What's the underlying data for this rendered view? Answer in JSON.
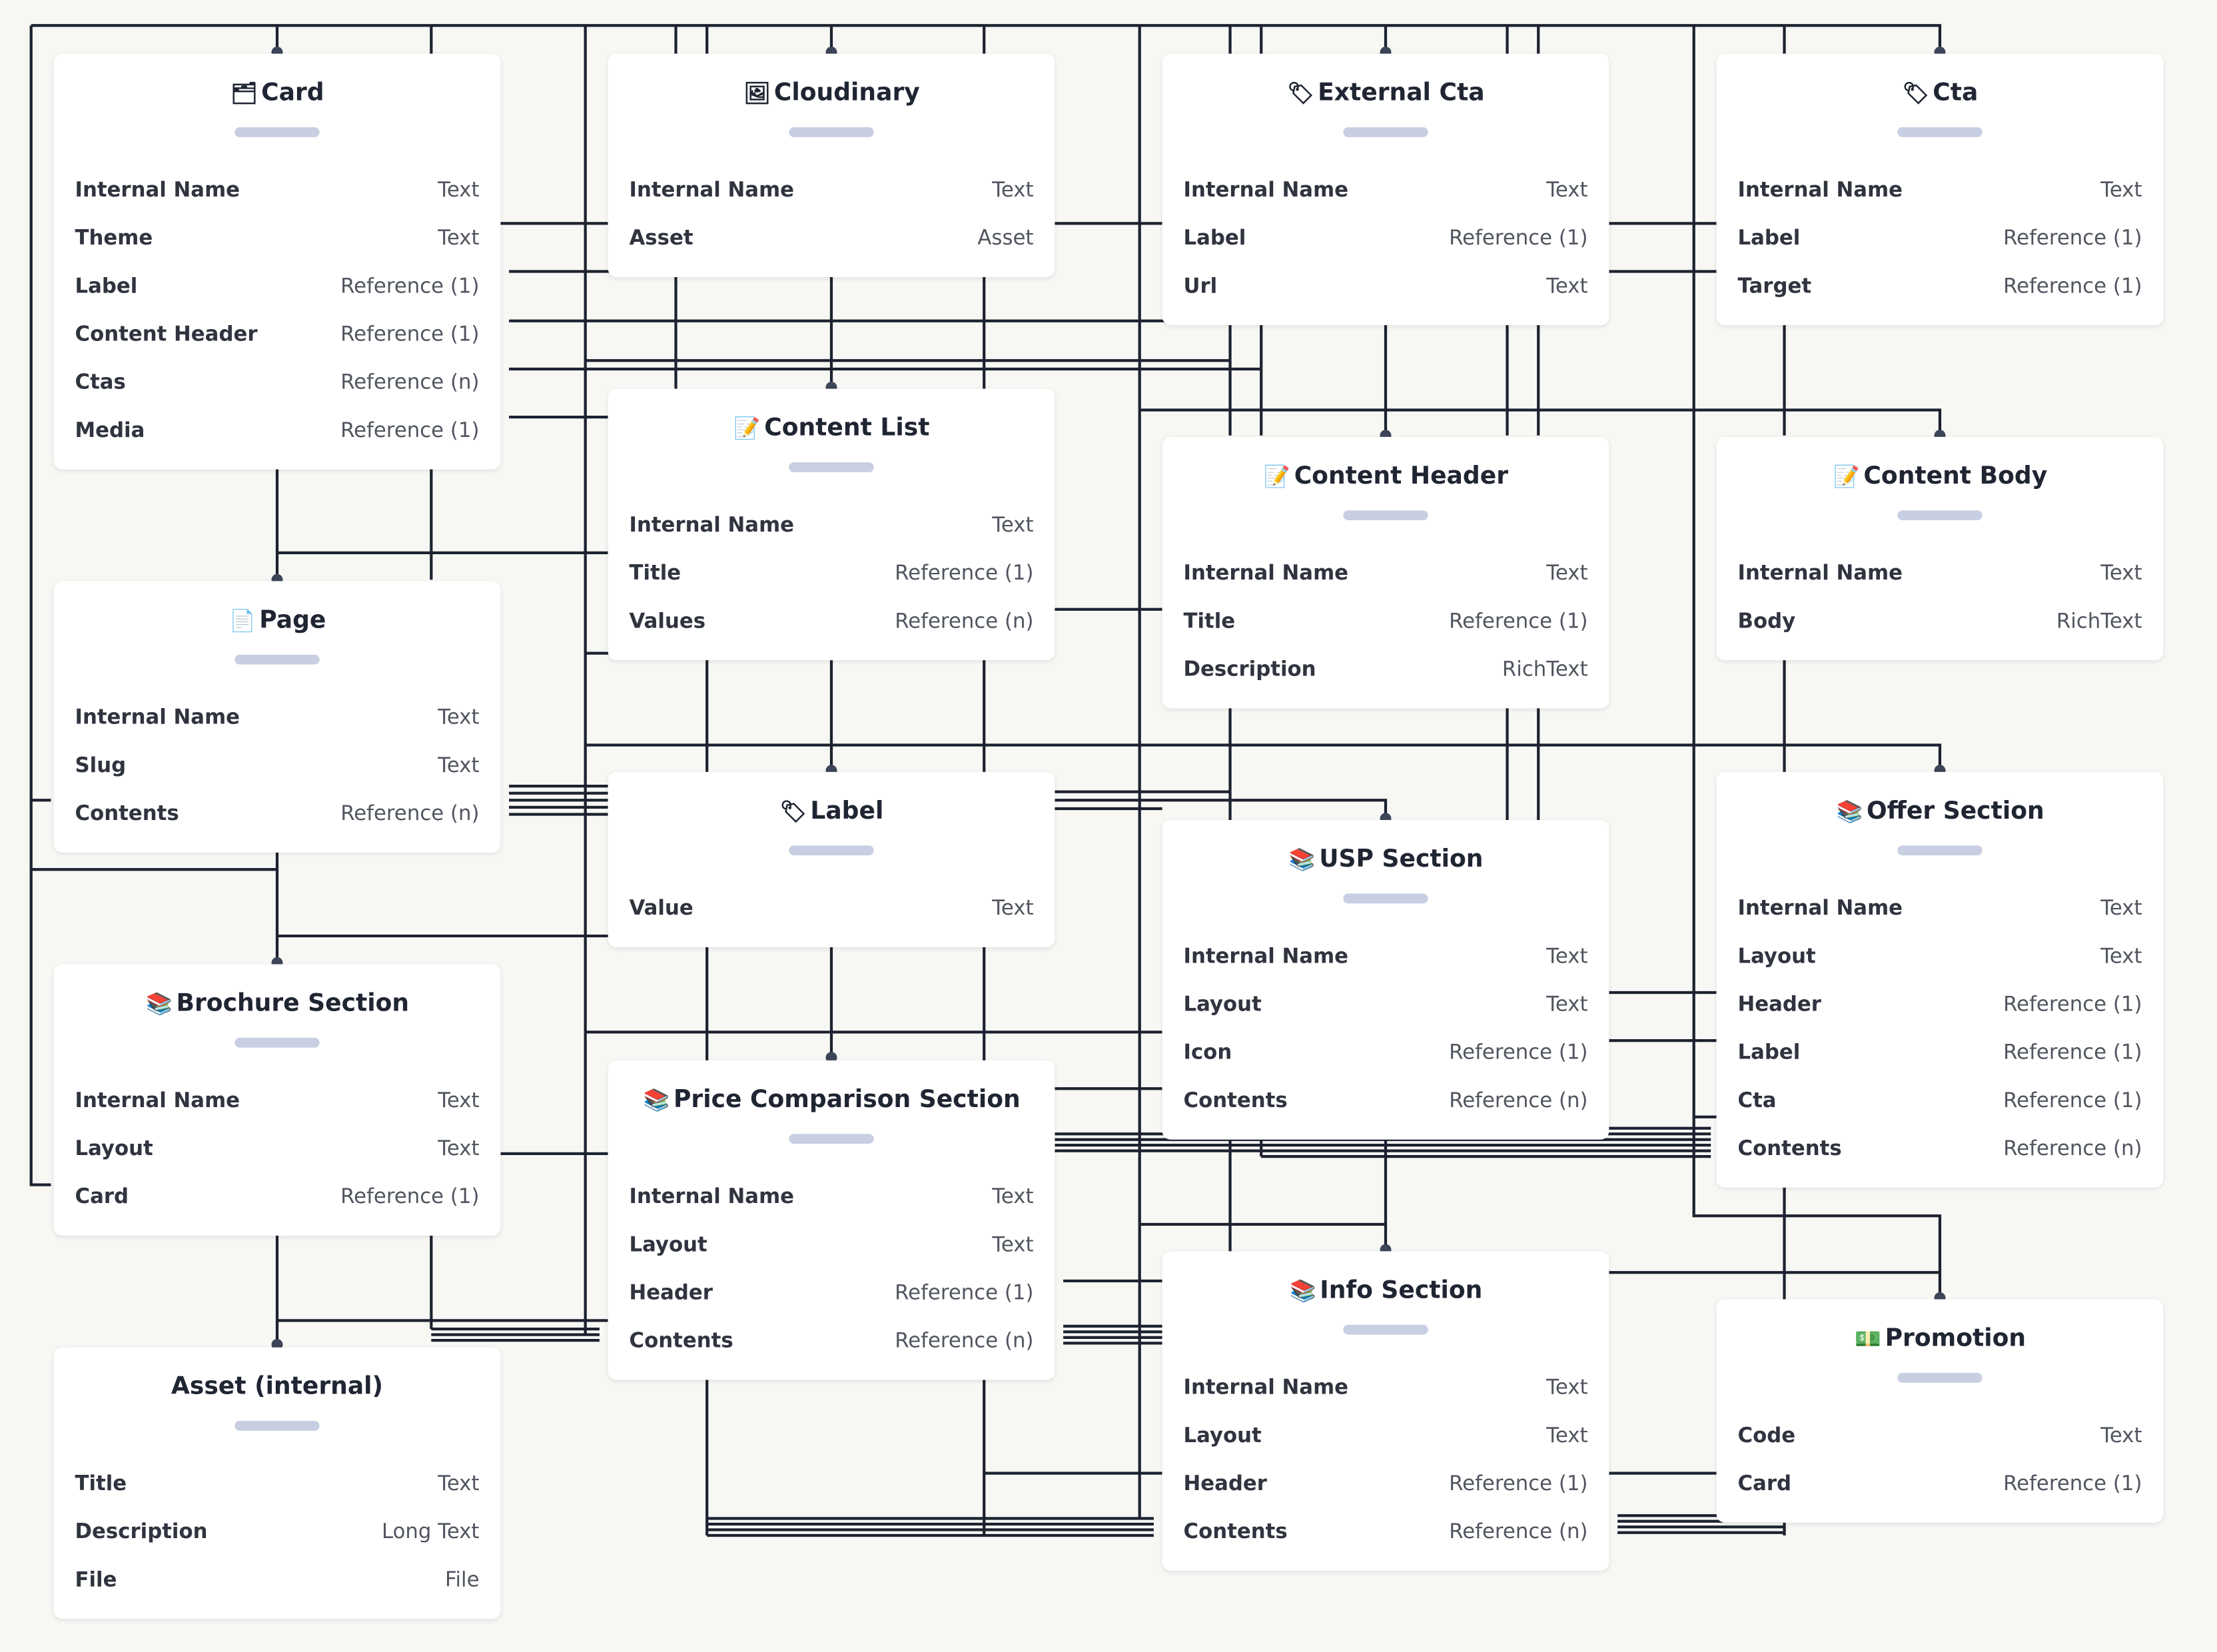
{
  "nodes": [
    {
      "id": "card",
      "title": "Card",
      "icon": "card-index-icon",
      "emoji": "🗂",
      "fields": [
        {
          "name": "Internal Name",
          "type": "Text"
        },
        {
          "name": "Theme",
          "type": "Text"
        },
        {
          "name": "Label",
          "type": "Reference (1)"
        },
        {
          "name": "Content Header",
          "type": "Reference (1)"
        },
        {
          "name": "Ctas",
          "type": "Reference (n)"
        },
        {
          "name": "Media",
          "type": "Reference (1)"
        }
      ]
    },
    {
      "id": "cloudinary",
      "title": "Cloudinary",
      "icon": "framed-picture-icon",
      "emoji": "🖼",
      "fields": [
        {
          "name": "Internal Name",
          "type": "Text"
        },
        {
          "name": "Asset",
          "type": "Asset"
        }
      ]
    },
    {
      "id": "external-cta",
      "title": "External Cta",
      "icon": "tag-icon",
      "emoji": "🏷",
      "fields": [
        {
          "name": "Internal Name",
          "type": "Text"
        },
        {
          "name": "Label",
          "type": "Reference (1)"
        },
        {
          "name": "Url",
          "type": "Text"
        }
      ]
    },
    {
      "id": "cta",
      "title": "Cta",
      "icon": "tag-icon",
      "emoji": "🏷",
      "fields": [
        {
          "name": "Internal Name",
          "type": "Text"
        },
        {
          "name": "Label",
          "type": "Reference (1)"
        },
        {
          "name": "Target",
          "type": "Reference (1)"
        }
      ]
    },
    {
      "id": "content-list",
      "title": "Content List",
      "icon": "memo-icon",
      "emoji": "📝",
      "fields": [
        {
          "name": "Internal Name",
          "type": "Text"
        },
        {
          "name": "Title",
          "type": "Reference (1)"
        },
        {
          "name": "Values",
          "type": "Reference (n)"
        }
      ]
    },
    {
      "id": "content-header",
      "title": "Content Header",
      "icon": "memo-icon",
      "emoji": "📝",
      "fields": [
        {
          "name": "Internal Name",
          "type": "Text"
        },
        {
          "name": "Title",
          "type": "Reference (1)"
        },
        {
          "name": "Description",
          "type": "RichText"
        }
      ]
    },
    {
      "id": "content-body",
      "title": "Content Body",
      "icon": "memo-icon",
      "emoji": "📝",
      "fields": [
        {
          "name": "Internal Name",
          "type": "Text"
        },
        {
          "name": "Body",
          "type": "RichText"
        }
      ]
    },
    {
      "id": "page",
      "title": "Page",
      "icon": "page-icon",
      "emoji": "📄",
      "fields": [
        {
          "name": "Internal Name",
          "type": "Text"
        },
        {
          "name": "Slug",
          "type": "Text"
        },
        {
          "name": "Contents",
          "type": "Reference (n)"
        }
      ]
    },
    {
      "id": "label",
      "title": "Label",
      "icon": "label-tag-icon",
      "emoji": "🏷",
      "fields": [
        {
          "name": "Value",
          "type": "Text"
        }
      ]
    },
    {
      "id": "offer-section",
      "title": "Offer Section",
      "icon": "books-icon",
      "emoji": "📚",
      "fields": [
        {
          "name": "Internal Name",
          "type": "Text"
        },
        {
          "name": "Layout",
          "type": "Text"
        },
        {
          "name": "Header",
          "type": "Reference (1)"
        },
        {
          "name": "Label",
          "type": "Reference (1)"
        },
        {
          "name": "Cta",
          "type": "Reference (1)"
        },
        {
          "name": "Contents",
          "type": "Reference (n)"
        }
      ]
    },
    {
      "id": "usp-section",
      "title": "USP Section",
      "icon": "books-icon",
      "emoji": "📚",
      "fields": [
        {
          "name": "Internal Name",
          "type": "Text"
        },
        {
          "name": "Layout",
          "type": "Text"
        },
        {
          "name": "Icon",
          "type": "Reference (1)"
        },
        {
          "name": "Contents",
          "type": "Reference (n)"
        }
      ]
    },
    {
      "id": "brochure-section",
      "title": "Brochure Section",
      "icon": "books-icon",
      "emoji": "📚",
      "fields": [
        {
          "name": "Internal Name",
          "type": "Text"
        },
        {
          "name": "Layout",
          "type": "Text"
        },
        {
          "name": "Card",
          "type": "Reference (1)"
        }
      ]
    },
    {
      "id": "price-comparison-section",
      "title": "Price Comparison Section",
      "icon": "books-icon",
      "emoji": "📚",
      "fields": [
        {
          "name": "Internal Name",
          "type": "Text"
        },
        {
          "name": "Layout",
          "type": "Text"
        },
        {
          "name": "Header",
          "type": "Reference (1)"
        },
        {
          "name": "Contents",
          "type": "Reference (n)"
        }
      ]
    },
    {
      "id": "info-section",
      "title": "Info Section",
      "icon": "books-icon",
      "emoji": "📚",
      "fields": [
        {
          "name": "Internal Name",
          "type": "Text"
        },
        {
          "name": "Layout",
          "type": "Text"
        },
        {
          "name": "Header",
          "type": "Reference (1)"
        },
        {
          "name": "Contents",
          "type": "Reference (n)"
        }
      ]
    },
    {
      "id": "promotion",
      "title": "Promotion",
      "icon": "money-icon",
      "emoji": "💵",
      "fields": [
        {
          "name": "Code",
          "type": "Text"
        },
        {
          "name": "Card",
          "type": "Reference (1)"
        }
      ]
    },
    {
      "id": "asset-internal",
      "title": "Asset (internal)",
      "icon": "",
      "emoji": "",
      "fields": [
        {
          "name": "Title",
          "type": "Text"
        },
        {
          "name": "Description",
          "type": "Long Text"
        },
        {
          "name": "File",
          "type": "File"
        }
      ]
    }
  ],
  "colors": {
    "wire": "#1d2230",
    "connector": "#3d4658",
    "accent_bar": "#c9cfe2"
  }
}
